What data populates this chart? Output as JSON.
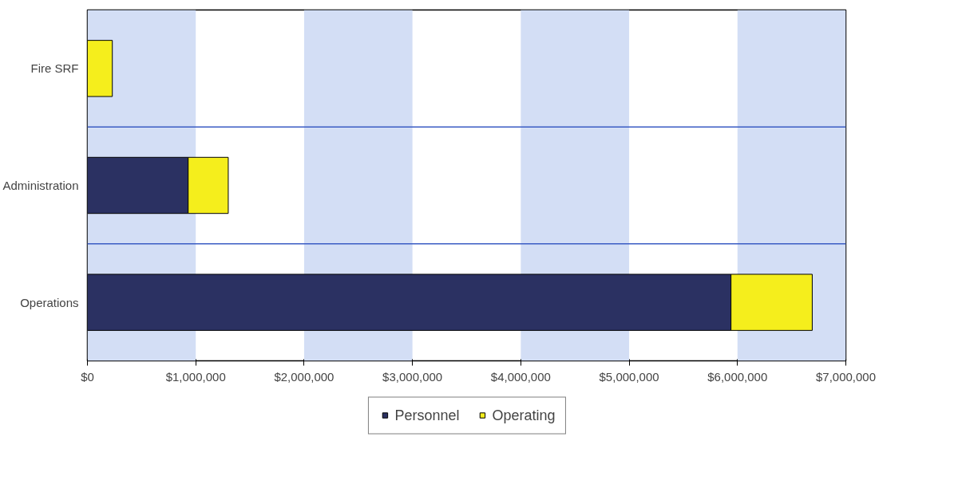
{
  "chart_data": {
    "type": "bar",
    "orientation": "horizontal",
    "stacked": true,
    "categories": [
      "Fire SRF",
      "Administration",
      "Operations"
    ],
    "series": [
      {
        "name": "Personnel",
        "color": "#2b3162",
        "values": [
          0,
          930000,
          5940000
        ]
      },
      {
        "name": "Operating",
        "color": "#f5ee1c",
        "values": [
          230000,
          370000,
          750000
        ]
      }
    ],
    "xlim": [
      0,
      7000000
    ],
    "xticks": [
      {
        "value": 0,
        "label": "$0"
      },
      {
        "value": 1000000,
        "label": "$1,000,000"
      },
      {
        "value": 2000000,
        "label": "$2,000,000"
      },
      {
        "value": 3000000,
        "label": "$3,000,000"
      },
      {
        "value": 4000000,
        "label": "$4,000,000"
      },
      {
        "value": 5000000,
        "label": "$5,000,000"
      },
      {
        "value": 6000000,
        "label": "$6,000,000"
      },
      {
        "value": 7000000,
        "label": "$7,000,000"
      }
    ],
    "bands": [
      {
        "axis": "x",
        "from": 0,
        "to": 1000000,
        "color": "#d3def5"
      },
      {
        "axis": "x",
        "from": 2000000,
        "to": 3000000,
        "color": "#d3def5"
      },
      {
        "axis": "x",
        "from": 4000000,
        "to": 5000000,
        "color": "#d3def5"
      },
      {
        "axis": "x",
        "from": 6000000,
        "to": 7000000,
        "color": "#d3def5"
      }
    ],
    "legend": "bottom"
  }
}
